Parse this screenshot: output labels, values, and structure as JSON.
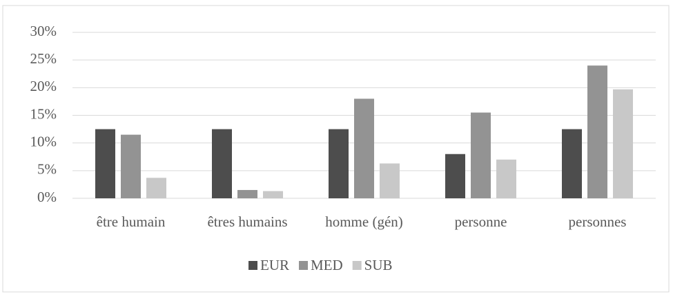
{
  "chart_data": {
    "type": "bar",
    "categories": [
      "être humain",
      "êtres humains",
      "homme (gén)",
      "personne",
      "personnes"
    ],
    "series": [
      {
        "name": "EUR",
        "color": "#4d4d4d",
        "values": [
          12.5,
          12.5,
          12.5,
          8,
          12.5
        ]
      },
      {
        "name": "MED",
        "color": "#939393",
        "values": [
          11.5,
          1.5,
          18,
          15.5,
          24
        ]
      },
      {
        "name": "SUB",
        "color": "#c8c8c8",
        "values": [
          3.7,
          1.3,
          6.3,
          7,
          19.7
        ]
      }
    ],
    "ylim": [
      0,
      30
    ],
    "yticks": [
      {
        "value": 0,
        "label": "0%"
      },
      {
        "value": 5,
        "label": "5%"
      },
      {
        "value": 10,
        "label": "10%"
      },
      {
        "value": 15,
        "label": "15%"
      },
      {
        "value": 20,
        "label": "20%"
      },
      {
        "value": 25,
        "label": "25%"
      },
      {
        "value": 30,
        "label": "30%"
      }
    ],
    "grid": true,
    "legend": "bottom"
  }
}
